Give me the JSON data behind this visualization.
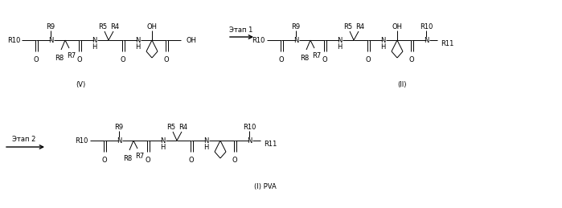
{
  "bg_color": "#ffffff",
  "fig_width": 6.99,
  "fig_height": 2.59,
  "dpi": 100,
  "structures": {
    "V_label": "(V)",
    "II_label": "(II)",
    "I_label": "(I) PVA",
    "step1_label": "Этап 1",
    "step2_label": "Этап 2"
  },
  "font_size": 6.0,
  "line_width": 0.7
}
